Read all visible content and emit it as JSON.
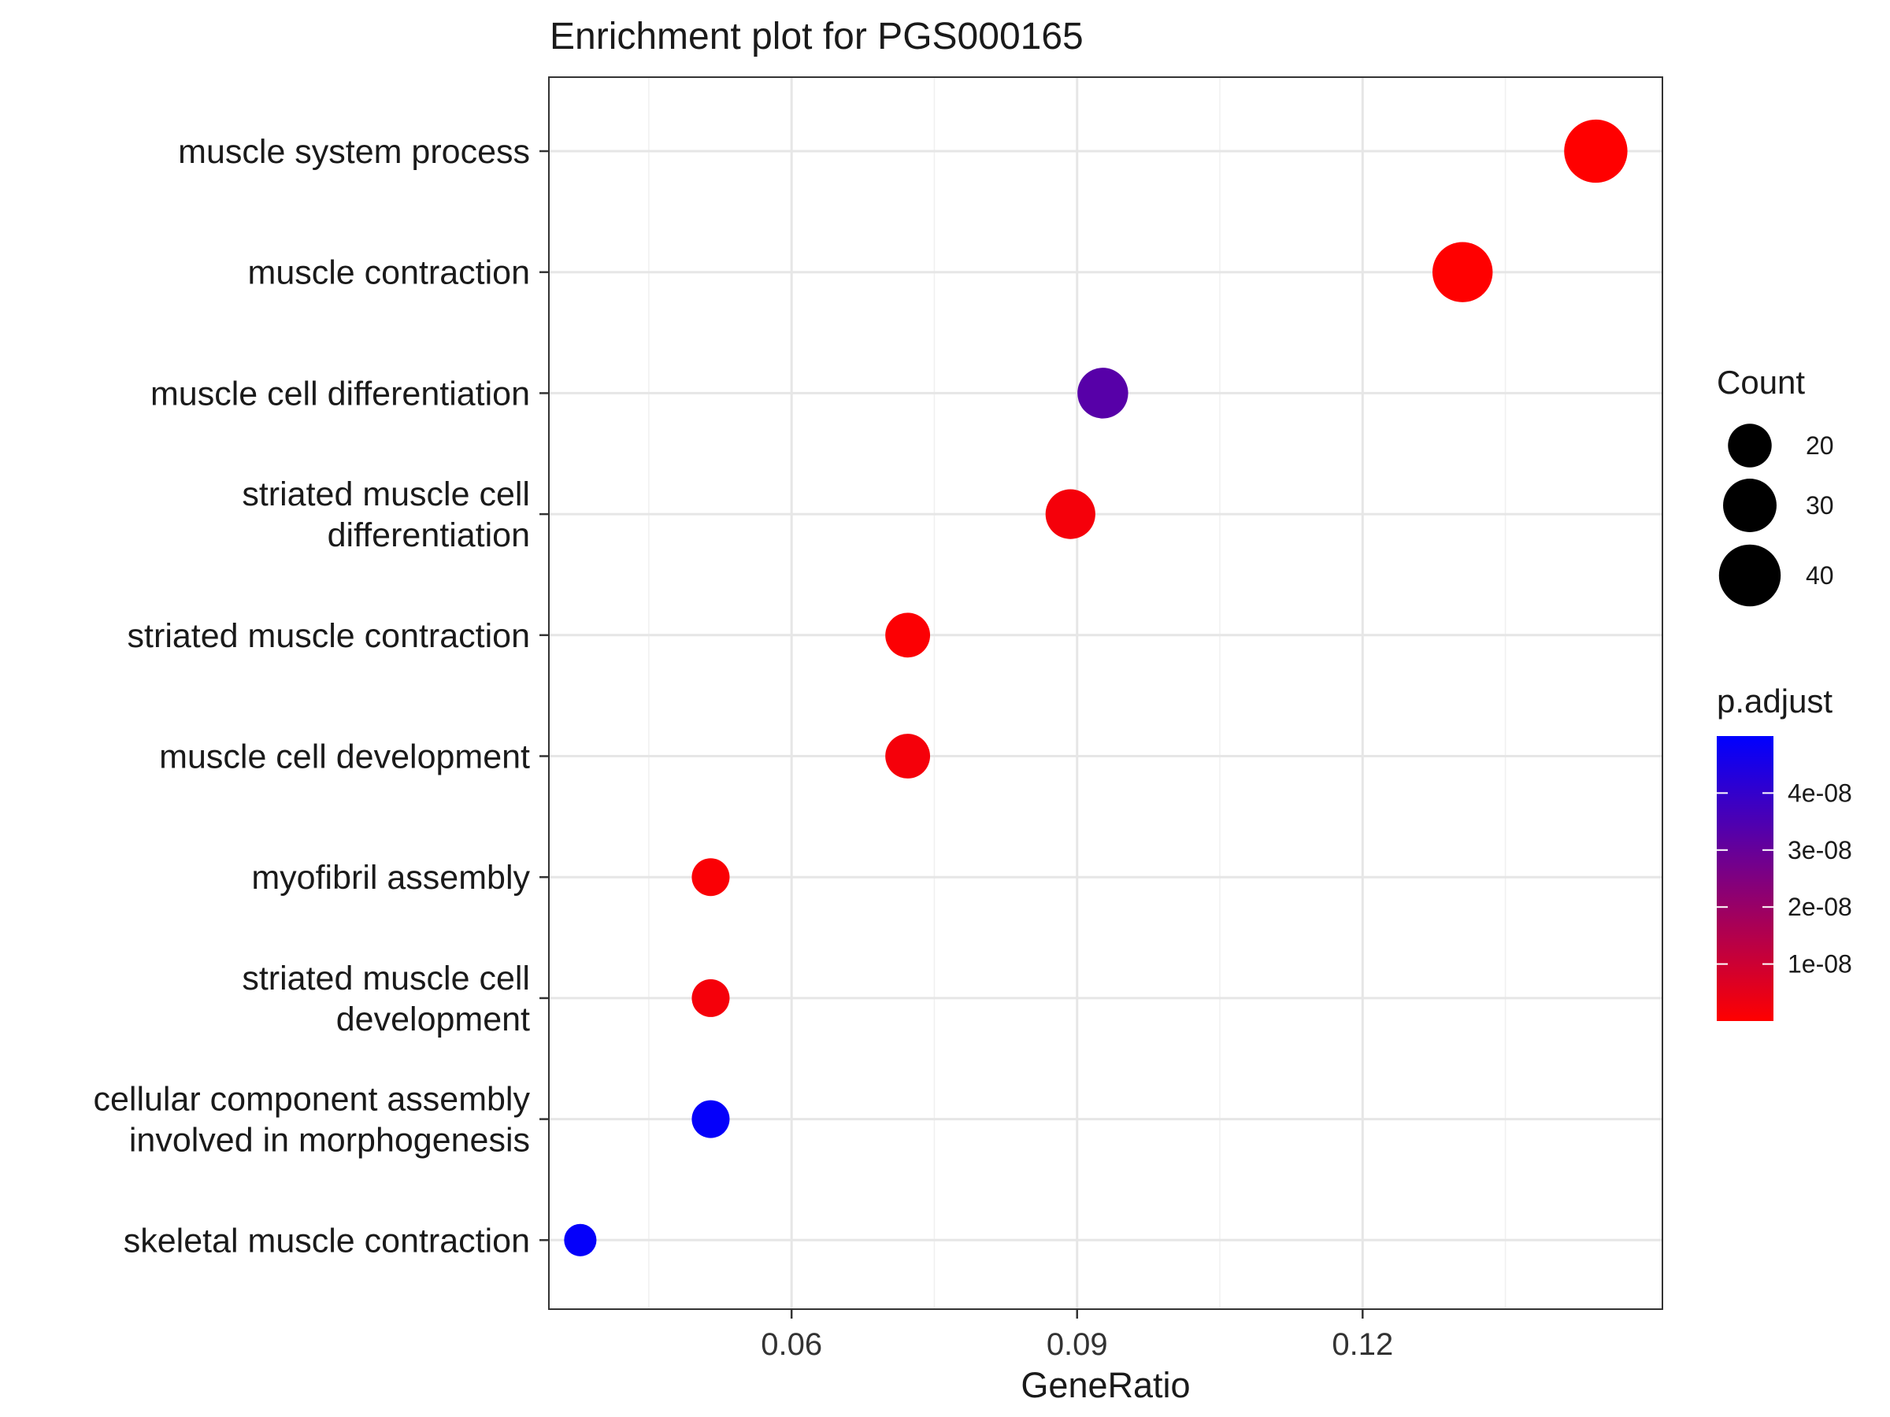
{
  "chart_data": {
    "type": "scatter",
    "title": "Enrichment plot for PGS000165",
    "xlabel": "GeneRatio",
    "ylabel": "",
    "xlim": [
      0.0345,
      0.1515
    ],
    "x_ticks": [
      "0.06",
      "0.09",
      "0.12"
    ],
    "x_tick_values": [
      0.06,
      0.09,
      0.12
    ],
    "grid": true,
    "legend_position": "right",
    "categories": [
      "muscle system process",
      "muscle contraction",
      "muscle cell differentiation",
      "striated muscle cell differentiation",
      "striated muscle contraction",
      "muscle cell development",
      "myofibril assembly",
      "striated muscle cell development",
      "cellular component assembly involved in morphogenesis",
      "skeletal muscle contraction"
    ],
    "category_lines": [
      [
        "muscle system process"
      ],
      [
        "muscle contraction"
      ],
      [
        "muscle cell differentiation"
      ],
      [
        "striated muscle cell",
        "differentiation"
      ],
      [
        "striated muscle contraction"
      ],
      [
        "muscle cell development"
      ],
      [
        "myofibril assembly"
      ],
      [
        "striated muscle cell",
        "development"
      ],
      [
        "cellular component assembly",
        "involved in morphogenesis"
      ],
      [
        "skeletal muscle contraction"
      ]
    ],
    "points": [
      {
        "term": "muscle system process",
        "gene_ratio": 0.1445,
        "count": 42,
        "p_adjust": 1e-12
      },
      {
        "term": "muscle contraction",
        "gene_ratio": 0.1305,
        "count": 38,
        "p_adjust": 1e-11
      },
      {
        "term": "muscle cell differentiation",
        "gene_ratio": 0.0927,
        "count": 27,
        "p_adjust": 3.3e-08
      },
      {
        "term": "striated muscle cell differentiation",
        "gene_ratio": 0.0893,
        "count": 26,
        "p_adjust": 2e-09
      },
      {
        "term": "striated muscle contraction",
        "gene_ratio": 0.0722,
        "count": 21,
        "p_adjust": 5e-10
      },
      {
        "term": "muscle cell development",
        "gene_ratio": 0.0722,
        "count": 21,
        "p_adjust": 2e-09
      },
      {
        "term": "myofibril assembly",
        "gene_ratio": 0.0515,
        "count": 15,
        "p_adjust": 1e-09
      },
      {
        "term": "striated muscle cell development",
        "gene_ratio": 0.0515,
        "count": 15,
        "p_adjust": 2e-09
      },
      {
        "term": "cellular component assembly involved in morphogenesis",
        "gene_ratio": 0.0515,
        "count": 15,
        "p_adjust": 4.9e-08
      },
      {
        "term": "skeletal muscle contraction",
        "gene_ratio": 0.0378,
        "count": 11,
        "p_adjust": 4.9e-08
      }
    ],
    "size_legend": {
      "title": "Count",
      "breaks": [
        20,
        30,
        40
      ],
      "labels": [
        "20",
        "30",
        "40"
      ]
    },
    "color_legend": {
      "title": "p.adjust",
      "low_color": "#ff0000",
      "high_color": "#0000ff",
      "min": 0,
      "max": 5e-08,
      "breaks": [
        1e-08,
        2e-08,
        3e-08,
        4e-08
      ],
      "labels": [
        "1e-08",
        "2e-08",
        "3e-08",
        "4e-08"
      ]
    }
  }
}
